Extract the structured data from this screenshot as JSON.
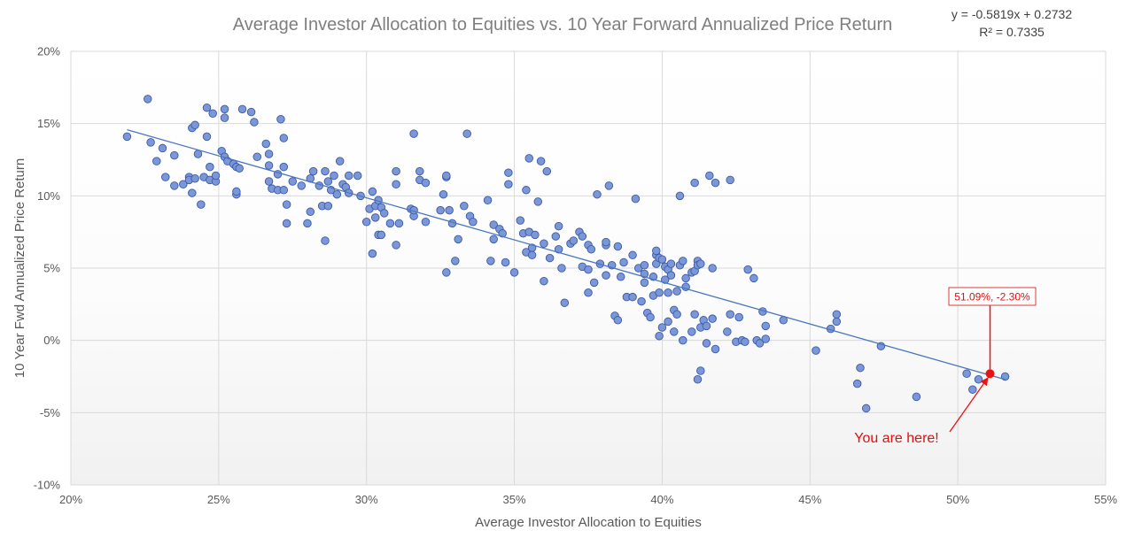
{
  "chart_data": {
    "type": "scatter",
    "title": "Average Investor Allocation to Equities vs. 10 Year Forward Annualized Price Return",
    "xlabel": "Average Investor Allocation to Equities",
    "ylabel": "10 Year Fwd Annualized Price Return",
    "xlim": [
      0.2,
      0.55
    ],
    "ylim": [
      -0.1,
      0.2
    ],
    "x_ticks": [
      0.2,
      0.25,
      0.3,
      0.35,
      0.4,
      0.45,
      0.5,
      0.55
    ],
    "y_ticks": [
      -0.1,
      -0.05,
      0.0,
      0.05,
      0.1,
      0.15,
      0.2
    ],
    "x_tick_labels": [
      "20%",
      "25%",
      "30%",
      "35%",
      "40%",
      "45%",
      "50%",
      "55%"
    ],
    "y_tick_labels": [
      "-10%",
      "-5%",
      "0%",
      "5%",
      "10%",
      "15%",
      "20%"
    ],
    "grid": true,
    "legend": false,
    "trendline": {
      "slope": -0.5819,
      "intercept": 0.2732,
      "x_range": [
        0.219,
        0.516
      ],
      "equation_label": "y = -0.5819x + 0.2732",
      "r2_label": "R² = 0.7335"
    },
    "highlight": {
      "x": 0.5109,
      "y": -0.023,
      "label": "51.09%, -2.30%",
      "annotation": "You are here!"
    },
    "colors": {
      "point_fill": "#7b97d8",
      "point_stroke": "#3a5ba8",
      "trendline": "#4a76c0",
      "highlight": "#ee1111",
      "label_border": "#e03a3a",
      "annotation_text": "#e01010"
    },
    "points": [
      [
        0.219,
        0.141
      ],
      [
        0.226,
        0.167
      ],
      [
        0.227,
        0.137
      ],
      [
        0.229,
        0.124
      ],
      [
        0.231,
        0.133
      ],
      [
        0.232,
        0.113
      ],
      [
        0.235,
        0.128
      ],
      [
        0.235,
        0.107
      ],
      [
        0.238,
        0.108
      ],
      [
        0.24,
        0.113
      ],
      [
        0.24,
        0.111
      ],
      [
        0.241,
        0.102
      ],
      [
        0.241,
        0.147
      ],
      [
        0.242,
        0.149
      ],
      [
        0.242,
        0.112
      ],
      [
        0.243,
        0.129
      ],
      [
        0.244,
        0.094
      ],
      [
        0.245,
        0.113
      ],
      [
        0.246,
        0.141
      ],
      [
        0.246,
        0.161
      ],
      [
        0.247,
        0.12
      ],
      [
        0.247,
        0.111
      ],
      [
        0.248,
        0.157
      ],
      [
        0.249,
        0.11
      ],
      [
        0.249,
        0.114
      ],
      [
        0.251,
        0.131
      ],
      [
        0.252,
        0.127
      ],
      [
        0.252,
        0.154
      ],
      [
        0.252,
        0.16
      ],
      [
        0.253,
        0.124
      ],
      [
        0.255,
        0.122
      ],
      [
        0.256,
        0.12
      ],
      [
        0.256,
        0.101
      ],
      [
        0.256,
        0.103
      ],
      [
        0.257,
        0.119
      ],
      [
        0.258,
        0.16
      ],
      [
        0.261,
        0.158
      ],
      [
        0.262,
        0.151
      ],
      [
        0.263,
        0.127
      ],
      [
        0.266,
        0.136
      ],
      [
        0.267,
        0.129
      ],
      [
        0.267,
        0.121
      ],
      [
        0.267,
        0.11
      ],
      [
        0.268,
        0.105
      ],
      [
        0.27,
        0.115
      ],
      [
        0.27,
        0.104
      ],
      [
        0.271,
        0.153
      ],
      [
        0.272,
        0.104
      ],
      [
        0.272,
        0.14
      ],
      [
        0.272,
        0.12
      ],
      [
        0.273,
        0.094
      ],
      [
        0.273,
        0.081
      ],
      [
        0.275,
        0.11
      ],
      [
        0.278,
        0.107
      ],
      [
        0.28,
        0.081
      ],
      [
        0.281,
        0.112
      ],
      [
        0.281,
        0.089
      ],
      [
        0.282,
        0.117
      ],
      [
        0.284,
        0.107
      ],
      [
        0.285,
        0.093
      ],
      [
        0.286,
        0.069
      ],
      [
        0.286,
        0.117
      ],
      [
        0.287,
        0.093
      ],
      [
        0.287,
        0.11
      ],
      [
        0.288,
        0.104
      ],
      [
        0.289,
        0.114
      ],
      [
        0.29,
        0.101
      ],
      [
        0.291,
        0.124
      ],
      [
        0.292,
        0.108
      ],
      [
        0.293,
        0.106
      ],
      [
        0.294,
        0.102
      ],
      [
        0.294,
        0.114
      ],
      [
        0.297,
        0.114
      ],
      [
        0.298,
        0.1
      ],
      [
        0.3,
        0.082
      ],
      [
        0.301,
        0.091
      ],
      [
        0.302,
        0.103
      ],
      [
        0.302,
        0.06
      ],
      [
        0.303,
        0.085
      ],
      [
        0.303,
        0.093
      ],
      [
        0.304,
        0.097
      ],
      [
        0.304,
        0.073
      ],
      [
        0.305,
        0.073
      ],
      [
        0.305,
        0.092
      ],
      [
        0.306,
        0.088
      ],
      [
        0.308,
        0.081
      ],
      [
        0.31,
        0.066
      ],
      [
        0.31,
        0.108
      ],
      [
        0.31,
        0.117
      ],
      [
        0.311,
        0.081
      ],
      [
        0.315,
        0.091
      ],
      [
        0.316,
        0.086
      ],
      [
        0.316,
        0.09
      ],
      [
        0.316,
        0.143
      ],
      [
        0.318,
        0.117
      ],
      [
        0.318,
        0.111
      ],
      [
        0.32,
        0.109
      ],
      [
        0.32,
        0.082
      ],
      [
        0.325,
        0.09
      ],
      [
        0.326,
        0.101
      ],
      [
        0.327,
        0.113
      ],
      [
        0.327,
        0.114
      ],
      [
        0.327,
        0.047
      ],
      [
        0.328,
        0.09
      ],
      [
        0.329,
        0.081
      ],
      [
        0.33,
        0.055
      ],
      [
        0.331,
        0.07
      ],
      [
        0.333,
        0.093
      ],
      [
        0.334,
        0.143
      ],
      [
        0.335,
        0.086
      ],
      [
        0.336,
        0.082
      ],
      [
        0.341,
        0.097
      ],
      [
        0.342,
        0.055
      ],
      [
        0.343,
        0.07
      ],
      [
        0.343,
        0.08
      ],
      [
        0.345,
        0.077
      ],
      [
        0.346,
        0.074
      ],
      [
        0.347,
        0.054
      ],
      [
        0.348,
        0.116
      ],
      [
        0.348,
        0.108
      ],
      [
        0.35,
        0.047
      ],
      [
        0.352,
        0.083
      ],
      [
        0.353,
        0.074
      ],
      [
        0.354,
        0.061
      ],
      [
        0.354,
        0.104
      ],
      [
        0.355,
        0.075
      ],
      [
        0.355,
        0.126
      ],
      [
        0.356,
        0.064
      ],
      [
        0.356,
        0.059
      ],
      [
        0.357,
        0.073
      ],
      [
        0.358,
        0.096
      ],
      [
        0.359,
        0.124
      ],
      [
        0.36,
        0.067
      ],
      [
        0.36,
        0.041
      ],
      [
        0.361,
        0.117
      ],
      [
        0.362,
        0.057
      ],
      [
        0.364,
        0.072
      ],
      [
        0.365,
        0.079
      ],
      [
        0.365,
        0.063
      ],
      [
        0.366,
        0.05
      ],
      [
        0.367,
        0.026
      ],
      [
        0.369,
        0.067
      ],
      [
        0.37,
        0.069
      ],
      [
        0.372,
        0.075
      ],
      [
        0.373,
        0.051
      ],
      [
        0.373,
        0.072
      ],
      [
        0.375,
        0.033
      ],
      [
        0.375,
        0.049
      ],
      [
        0.375,
        0.066
      ],
      [
        0.376,
        0.063
      ],
      [
        0.377,
        0.04
      ],
      [
        0.378,
        0.101
      ],
      [
        0.379,
        0.053
      ],
      [
        0.381,
        0.066
      ],
      [
        0.381,
        0.068
      ],
      [
        0.381,
        0.045
      ],
      [
        0.382,
        0.107
      ],
      [
        0.383,
        0.052
      ],
      [
        0.384,
        0.017
      ],
      [
        0.385,
        0.014
      ],
      [
        0.385,
        0.065
      ],
      [
        0.386,
        0.044
      ],
      [
        0.387,
        0.054
      ],
      [
        0.388,
        0.03
      ],
      [
        0.39,
        0.059
      ],
      [
        0.39,
        0.03
      ],
      [
        0.391,
        0.098
      ],
      [
        0.392,
        0.05
      ],
      [
        0.393,
        0.027
      ],
      [
        0.394,
        0.052
      ],
      [
        0.394,
        0.046
      ],
      [
        0.394,
        0.04
      ],
      [
        0.395,
        0.019
      ],
      [
        0.396,
        0.016
      ],
      [
        0.397,
        0.044
      ],
      [
        0.397,
        0.031
      ],
      [
        0.398,
        0.059
      ],
      [
        0.398,
        0.062
      ],
      [
        0.398,
        0.053
      ],
      [
        0.399,
        0.057
      ],
      [
        0.399,
        0.003
      ],
      [
        0.399,
        0.033
      ],
      [
        0.4,
        0.009
      ],
      [
        0.4,
        0.056
      ],
      [
        0.401,
        0.042
      ],
      [
        0.401,
        0.051
      ],
      [
        0.402,
        0.049
      ],
      [
        0.402,
        0.033
      ],
      [
        0.402,
        0.013
      ],
      [
        0.403,
        0.053
      ],
      [
        0.403,
        0.045
      ],
      [
        0.404,
        0.021
      ],
      [
        0.404,
        0.006
      ],
      [
        0.405,
        0.018
      ],
      [
        0.405,
        0.034
      ],
      [
        0.406,
        0.052
      ],
      [
        0.406,
        0.1
      ],
      [
        0.407,
        0.055
      ],
      [
        0.407,
        0.0
      ],
      [
        0.408,
        0.037
      ],
      [
        0.408,
        0.043
      ],
      [
        0.41,
        0.006
      ],
      [
        0.41,
        0.047
      ],
      [
        0.411,
        0.109
      ],
      [
        0.411,
        0.048
      ],
      [
        0.411,
        0.018
      ],
      [
        0.412,
        0.055
      ],
      [
        0.412,
        0.052
      ],
      [
        0.413,
        0.053
      ],
      [
        0.413,
        0.009
      ],
      [
        0.413,
        -0.021
      ],
      [
        0.412,
        -0.027
      ],
      [
        0.414,
        0.014
      ],
      [
        0.415,
        0.01
      ],
      [
        0.415,
        -0.002
      ],
      [
        0.416,
        0.114
      ],
      [
        0.417,
        0.015
      ],
      [
        0.417,
        0.05
      ],
      [
        0.418,
        0.109
      ],
      [
        0.418,
        -0.006
      ],
      [
        0.422,
        0.006
      ],
      [
        0.423,
        0.018
      ],
      [
        0.423,
        0.111
      ],
      [
        0.425,
        -0.001
      ],
      [
        0.426,
        0.016
      ],
      [
        0.427,
        0.0
      ],
      [
        0.428,
        -0.001
      ],
      [
        0.429,
        0.049
      ],
      [
        0.431,
        0.043
      ],
      [
        0.432,
        0.0
      ],
      [
        0.433,
        -0.002
      ],
      [
        0.434,
        0.02
      ],
      [
        0.435,
        0.01
      ],
      [
        0.435,
        0.001
      ],
      [
        0.441,
        0.014
      ],
      [
        0.452,
        -0.007
      ],
      [
        0.457,
        0.008
      ],
      [
        0.459,
        0.013
      ],
      [
        0.459,
        0.018
      ],
      [
        0.466,
        -0.03
      ],
      [
        0.467,
        -0.019
      ],
      [
        0.469,
        -0.047
      ],
      [
        0.474,
        -0.004
      ],
      [
        0.486,
        -0.039
      ],
      [
        0.503,
        -0.023
      ],
      [
        0.505,
        -0.034
      ],
      [
        0.507,
        -0.027
      ],
      [
        0.516,
        -0.025
      ]
    ]
  }
}
